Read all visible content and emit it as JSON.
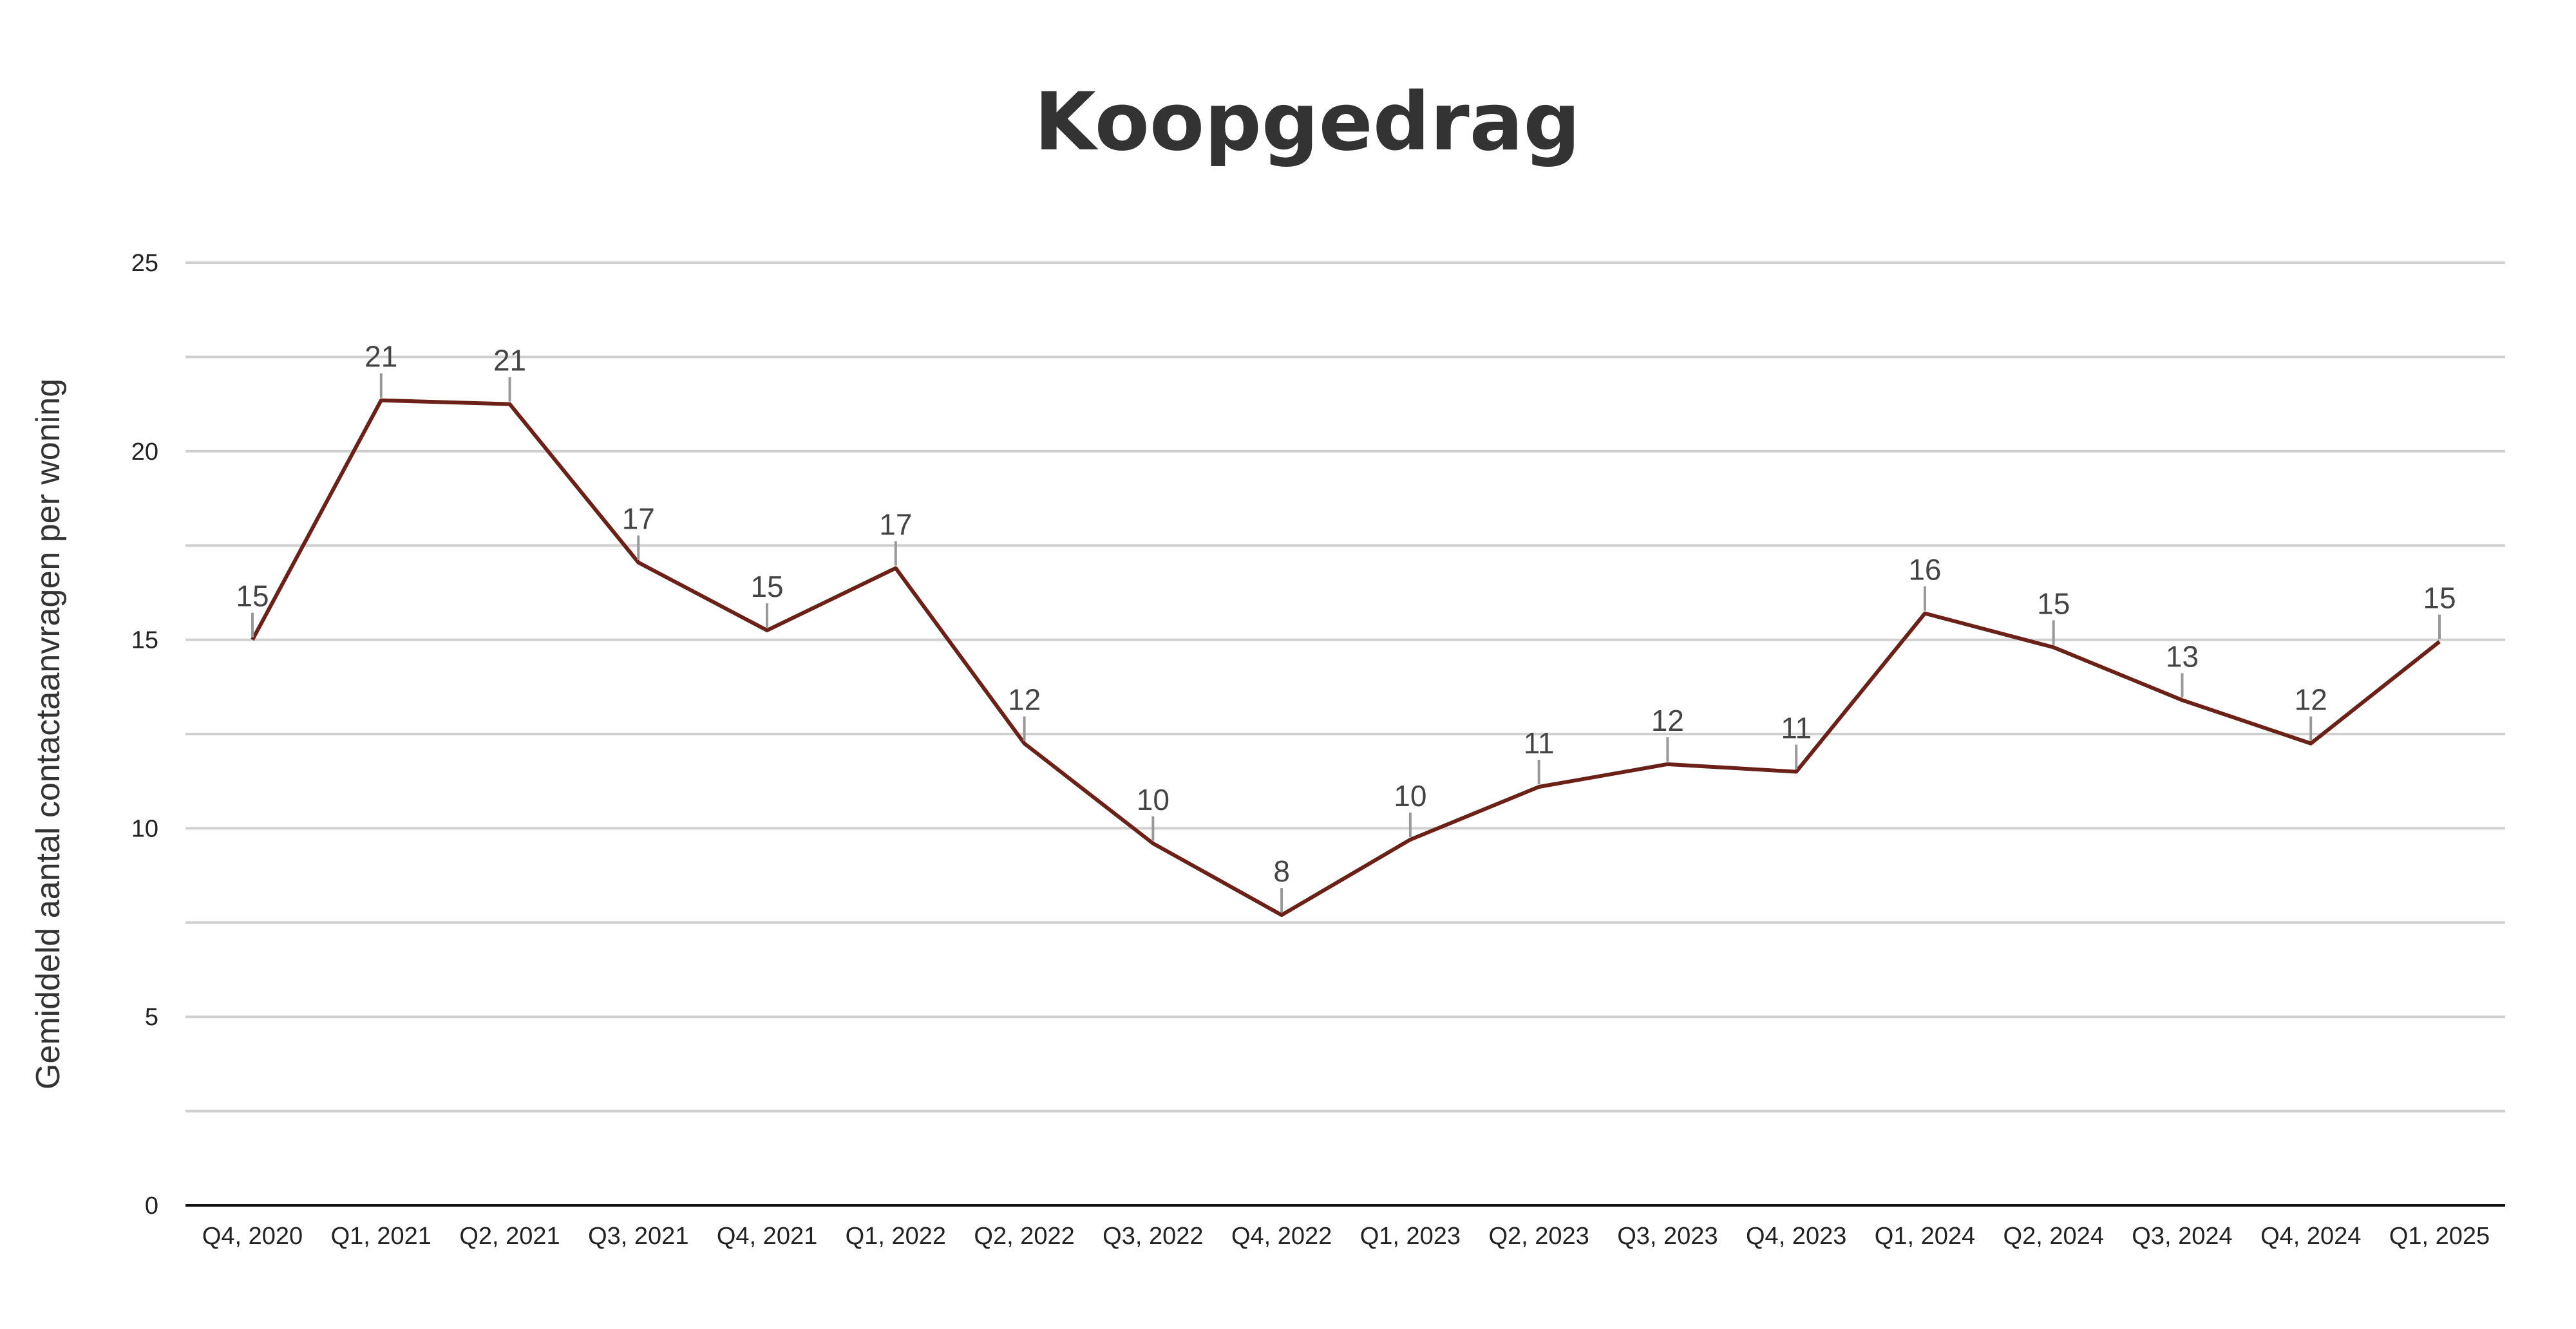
{
  "chart_data": {
    "type": "line",
    "title": "Koopgedrag",
    "xlabel": "",
    "ylabel": "Gemiddeld aantal contactaanvragen per woning",
    "ylim": [
      0,
      25
    ],
    "y_ticks": [
      "0",
      "5",
      "10",
      "15",
      "20",
      "25"
    ],
    "grid": true,
    "grid_step": 2.5,
    "categories": [
      "Q4, 2020",
      "Q1, 2021",
      "Q2, 2021",
      "Q3, 2021",
      "Q4, 2021",
      "Q1, 2022",
      "Q2, 2022",
      "Q3, 2022",
      "Q4, 2022",
      "Q1, 2023",
      "Q2, 2023",
      "Q3, 2023",
      "Q4, 2023",
      "Q1, 2024",
      "Q2, 2024",
      "Q3, 2024",
      "Q4, 2024",
      "Q1, 2025"
    ],
    "series": [
      {
        "values": [
          15.0,
          21.35,
          21.25,
          17.05,
          15.25,
          16.9,
          12.25,
          9.6,
          7.7,
          9.7,
          11.1,
          11.7,
          11.5,
          15.7,
          14.8,
          13.4,
          12.25,
          14.95
        ],
        "labels": [
          "15",
          "21",
          "21",
          "17",
          "15",
          "17",
          "12",
          "10",
          "8",
          "10",
          "11",
          "12",
          "11",
          "16",
          "15",
          "13",
          "12",
          "15"
        ],
        "color": "#6b2117"
      }
    ],
    "colors": {
      "line": "#6b2117",
      "grid": "#d0d0d0",
      "axis": "#111111",
      "leader": "#999999"
    }
  }
}
